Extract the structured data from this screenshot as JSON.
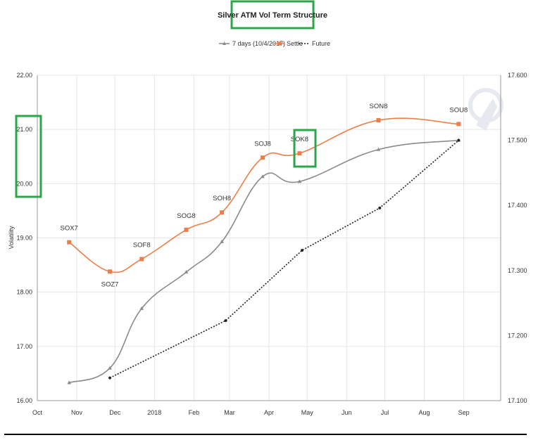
{
  "chart_data": {
    "type": "line",
    "title": "Silver ATM Vol Term Structure",
    "ylabel": "Volatility",
    "y2label": "",
    "xlabel": "",
    "x_ticks": [
      "Oct",
      "Nov",
      "Dec",
      "2018",
      "Feb",
      "Mar",
      "Apr",
      "May",
      "Jun",
      "Jul",
      "Aug",
      "Sep"
    ],
    "x_domain": [
      "2017-10-01",
      "2018-09-30"
    ],
    "ylim": [
      16.0,
      22.0
    ],
    "yticks": [
      "16.00",
      "17.00",
      "18.00",
      "19.00",
      "20.00",
      "21.00",
      "22.00"
    ],
    "y2lim": [
      17.1,
      17.6
    ],
    "y2ticks": [
      "17.100",
      "17.200",
      "17.300",
      "17.400",
      "17.500",
      "17.600"
    ],
    "grid": true,
    "legend_position": "top-center",
    "series": [
      {
        "name": "7 days (10/4/2017)",
        "axis": "left",
        "color": "#8a8a8a",
        "marker": "triangle",
        "x": [
          "2017-10-26",
          "2017-11-27",
          "2017-12-22",
          "2018-01-26",
          "2018-02-23",
          "2018-03-27",
          "2018-04-25",
          "2018-06-26",
          "2018-08-28"
        ],
        "values": [
          16.33,
          16.6,
          17.7,
          18.37,
          18.93,
          20.13,
          20.04,
          20.63,
          20.8
        ]
      },
      {
        "name": "Settle",
        "axis": "left",
        "color": "#ef7d4a",
        "marker": "square",
        "x": [
          "2017-10-26",
          "2017-11-27",
          "2017-12-22",
          "2018-01-26",
          "2018-02-23",
          "2018-03-27",
          "2018-04-25",
          "2018-06-26",
          "2018-08-28"
        ],
        "values": [
          18.92,
          18.38,
          18.61,
          19.15,
          19.47,
          20.48,
          20.56,
          21.17,
          21.1
        ],
        "labels": [
          "SOX7",
          "SOZ7",
          "SOF8",
          "SOG8",
          "SOH8",
          "SOJ8",
          "SOK8",
          "SON8",
          "SOU8"
        ]
      },
      {
        "name": "Future",
        "axis": "right",
        "color": "#222222",
        "marker": "dot",
        "style": "dashed",
        "x": [
          "2017-11-27",
          "2018-02-26",
          "2018-04-27",
          "2018-06-27",
          "2018-08-28"
        ],
        "values": [
          17.135,
          17.223,
          17.331,
          17.396,
          17.5
        ]
      }
    ],
    "highlights": [
      "title",
      "left-axis-20-21",
      "SOK8"
    ]
  }
}
